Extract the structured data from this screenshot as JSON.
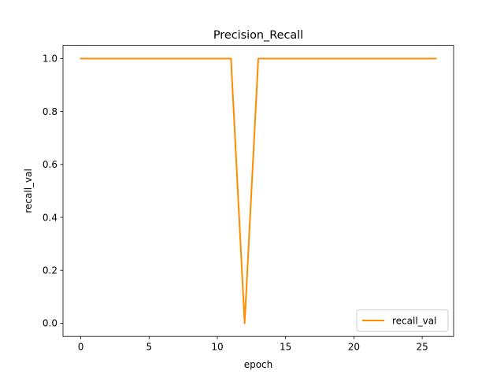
{
  "chart_data": {
    "type": "line",
    "title": "Precision_Recall",
    "xlabel": "epoch",
    "ylabel": "recall_val",
    "xlim": [
      -1.3,
      27.3
    ],
    "ylim": [
      -0.05,
      1.05
    ],
    "xticks": [
      0,
      5,
      10,
      15,
      20,
      25
    ],
    "yticks": [
      0.0,
      0.2,
      0.4,
      0.6,
      0.8,
      1.0
    ],
    "xtick_labels": [
      "0",
      "5",
      "10",
      "15",
      "20",
      "25"
    ],
    "ytick_labels": [
      "0.0",
      "0.2",
      "0.4",
      "0.6",
      "0.8",
      "1.0"
    ],
    "grid": false,
    "legend_position": "lower-right",
    "series": [
      {
        "name": "recall_val",
        "color": "#ff8c00",
        "x": [
          0,
          1,
          2,
          3,
          4,
          5,
          6,
          7,
          8,
          9,
          10,
          11,
          12,
          13,
          14,
          15,
          16,
          17,
          18,
          19,
          20,
          21,
          22,
          23,
          24,
          25,
          26
        ],
        "y": [
          1,
          1,
          1,
          1,
          1,
          1,
          1,
          1,
          1,
          1,
          1,
          1,
          0,
          1,
          1,
          1,
          1,
          1,
          1,
          1,
          1,
          1,
          1,
          1,
          1,
          1,
          1
        ]
      }
    ]
  }
}
